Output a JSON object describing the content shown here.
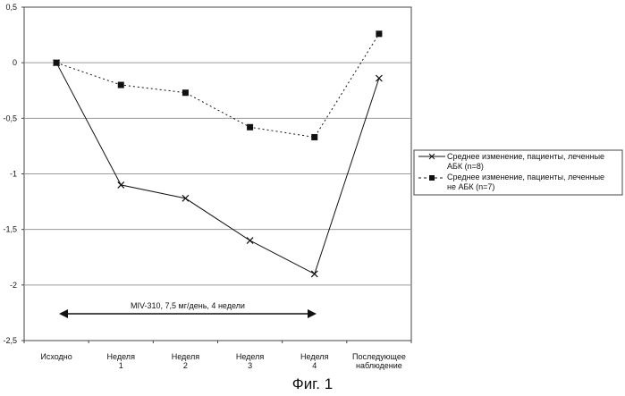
{
  "chart_data": {
    "type": "line",
    "categories": [
      "Исходно",
      "Неделя 1",
      "Неделя 2",
      "Неделя 3",
      "Неделя 4",
      "Последующее наблюдение"
    ],
    "series": [
      {
        "name": "Среднее изменение, пациенты, леченные АБК (n=8)",
        "values": [
          0,
          -1.1,
          -1.22,
          -1.6,
          -1.9,
          -0.14
        ],
        "line_style": "solid",
        "marker": "x",
        "color": "#111111"
      },
      {
        "name": "Среднее изменение, пациенты, леченные не АБК (n=7)",
        "values": [
          0,
          -0.2,
          -0.27,
          -0.58,
          -0.67,
          0.26
        ],
        "line_style": "dashed",
        "marker": "square",
        "color": "#111111"
      }
    ],
    "ylim": [
      -2.5,
      0.5
    ],
    "yticks": [
      "0,5",
      "0",
      "-0,5",
      "-1",
      "-1,5",
      "-2",
      "-2,5"
    ],
    "grid": true,
    "legend_position": "right",
    "annotation": "MIV-310, 7,5 мг/день, 4 недели"
  },
  "caption": "Фиг. 1"
}
